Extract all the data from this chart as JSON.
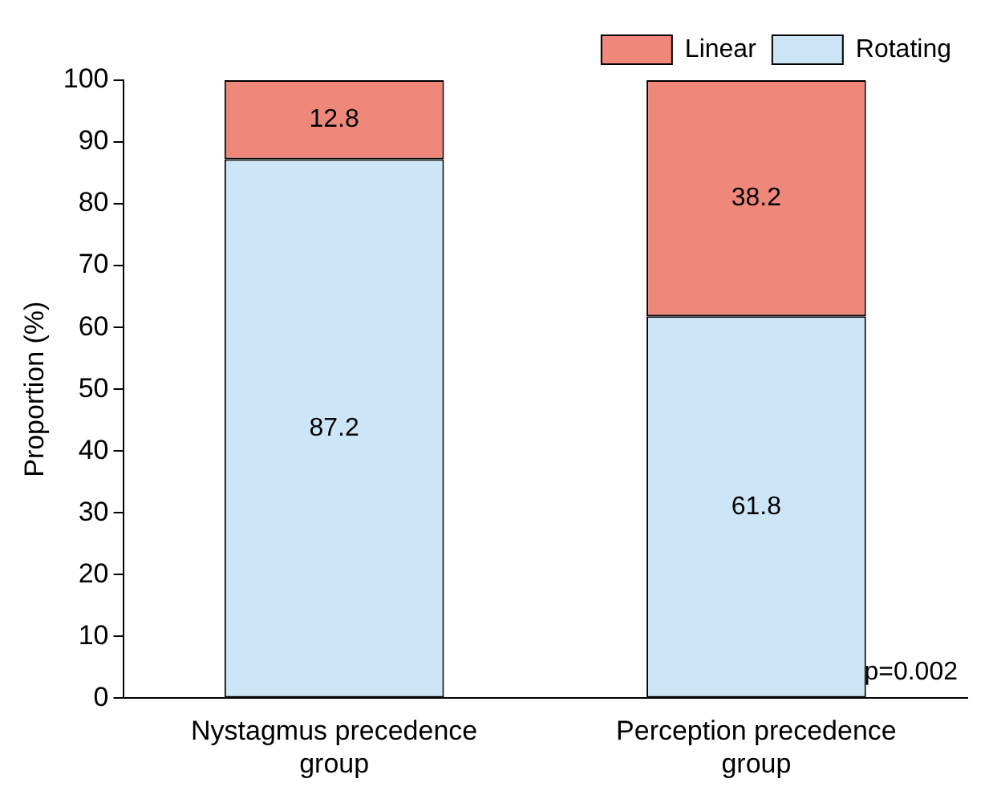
{
  "chart_data": {
    "type": "bar",
    "ylabel": "Proportion (%)",
    "categories": [
      "Nystagmus precedence group",
      "Perception precedence group"
    ],
    "series": [
      {
        "name": "Rotating",
        "color": "#cce5f7",
        "values": [
          87.2,
          61.8
        ]
      },
      {
        "name": "Linear",
        "color": "#ef877a",
        "values": [
          12.8,
          38.2
        ]
      }
    ],
    "stacked": true,
    "ylim": [
      0,
      100
    ],
    "yticks": [
      0,
      10,
      20,
      30,
      40,
      50,
      60,
      70,
      80,
      90,
      100
    ],
    "grid": false,
    "legend": "top right",
    "data_labels": true,
    "annotations": [
      "p=0.002"
    ]
  }
}
